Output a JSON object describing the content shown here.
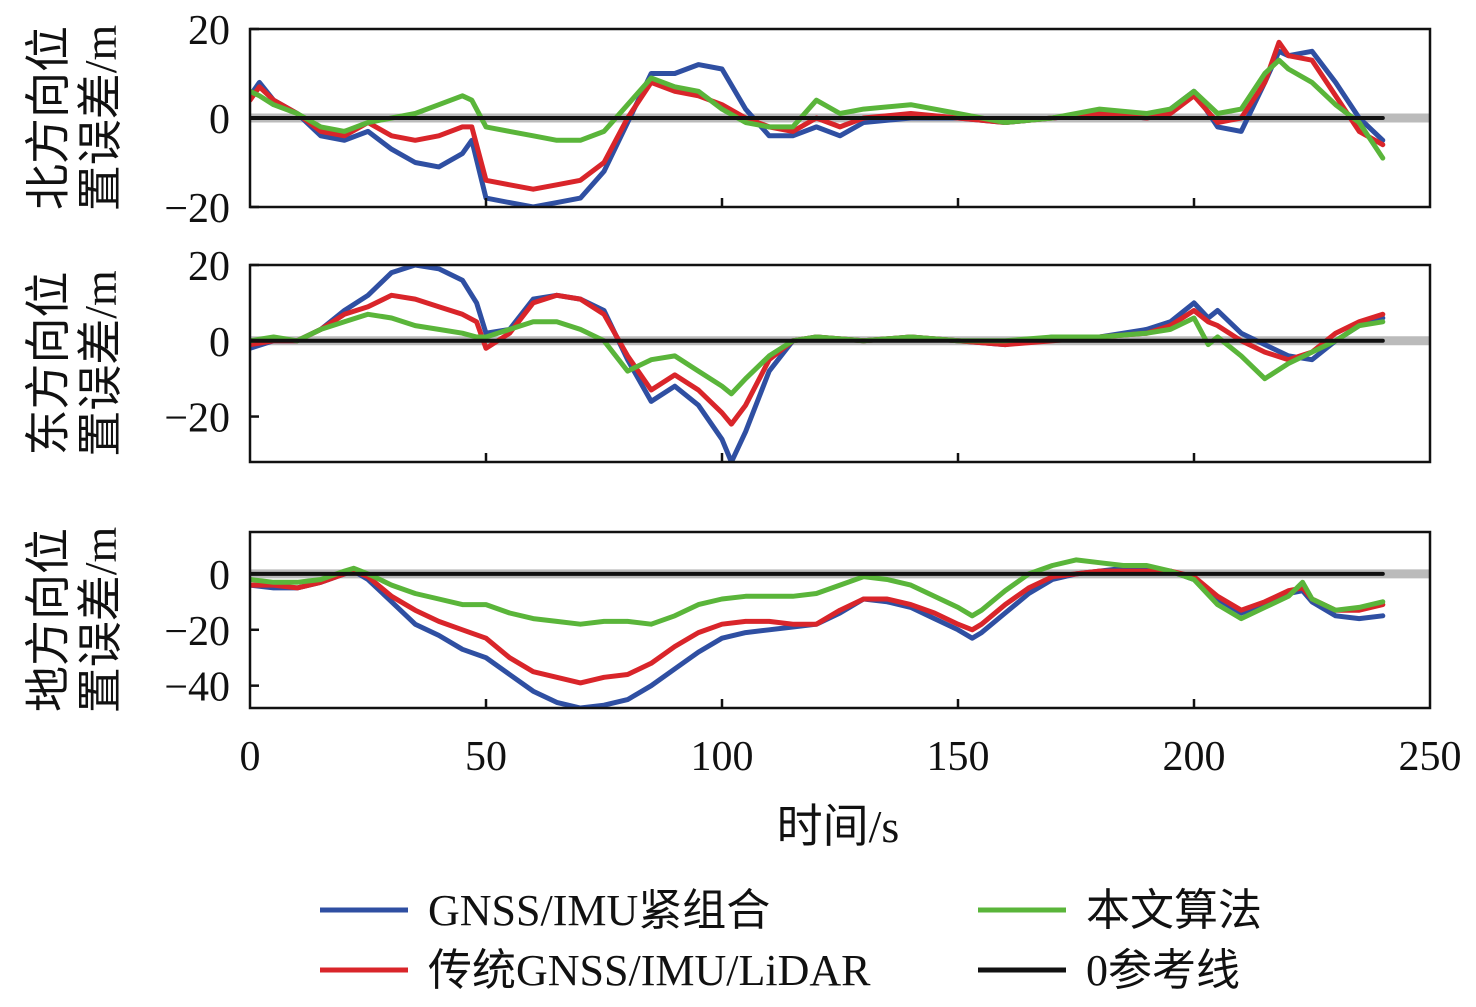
{
  "chart_data": [
    {
      "type": "line",
      "ylabel": [
        "北方向位",
        "置误差/m"
      ],
      "ylim": [
        -20,
        20
      ],
      "yticks": [
        20,
        0,
        -20
      ],
      "yticklabels": [
        "20",
        "0",
        "−20"
      ],
      "xlim": [
        0,
        250
      ],
      "grid": false,
      "series": [
        {
          "key": "blue",
          "x": [
            0,
            2,
            5,
            10,
            15,
            20,
            25,
            30,
            35,
            40,
            45,
            47,
            50,
            55,
            60,
            65,
            70,
            75,
            80,
            85,
            90,
            95,
            100,
            105,
            110,
            115,
            120,
            125,
            130,
            140,
            150,
            160,
            170,
            180,
            190,
            195,
            200,
            205,
            210,
            215,
            218,
            220,
            225,
            230,
            235,
            240
          ],
          "y": [
            5,
            8,
            4,
            1,
            -4,
            -5,
            -3,
            -7,
            -10,
            -11,
            -8,
            -5,
            -18,
            -19,
            -20,
            -19,
            -18,
            -12,
            -1,
            10,
            10,
            12,
            11,
            2,
            -4,
            -4,
            -2,
            -4,
            -1,
            0,
            0,
            -1,
            0,
            1,
            0,
            2,
            6,
            -2,
            -3,
            8,
            15,
            14,
            15,
            8,
            0,
            -5
          ]
        },
        {
          "key": "red",
          "x": [
            0,
            2,
            5,
            10,
            15,
            20,
            25,
            30,
            35,
            40,
            45,
            47,
            50,
            55,
            60,
            65,
            70,
            75,
            80,
            85,
            90,
            95,
            100,
            105,
            110,
            115,
            120,
            125,
            130,
            140,
            150,
            160,
            170,
            180,
            190,
            195,
            200,
            205,
            210,
            215,
            218,
            220,
            225,
            230,
            235,
            240
          ],
          "y": [
            4,
            7,
            4,
            1,
            -3,
            -4,
            -1,
            -4,
            -5,
            -4,
            -2,
            -2,
            -14,
            -15,
            -16,
            -15,
            -14,
            -10,
            0,
            8,
            6,
            5,
            3,
            0,
            -2,
            -3,
            0,
            -2,
            0,
            1,
            0,
            -1,
            0,
            1,
            0,
            1,
            5,
            -1,
            0,
            8,
            17,
            14,
            13,
            5,
            -3,
            -6
          ]
        },
        {
          "key": "green",
          "x": [
            0,
            2,
            5,
            10,
            15,
            20,
            25,
            30,
            35,
            40,
            45,
            47,
            50,
            55,
            60,
            65,
            70,
            75,
            80,
            85,
            90,
            95,
            100,
            105,
            110,
            115,
            120,
            125,
            130,
            140,
            150,
            160,
            170,
            180,
            190,
            195,
            200,
            205,
            210,
            215,
            218,
            220,
            225,
            230,
            235,
            240
          ],
          "y": [
            6,
            5,
            3,
            1,
            -2,
            -3,
            -1,
            0,
            1,
            3,
            5,
            4,
            -2,
            -3,
            -4,
            -5,
            -5,
            -3,
            3,
            9,
            7,
            6,
            2,
            -1,
            -2,
            -2,
            4,
            1,
            2,
            3,
            1,
            -1,
            0,
            2,
            1,
            2,
            6,
            1,
            2,
            10,
            13,
            11,
            8,
            3,
            -1,
            -9
          ]
        },
        {
          "key": "black",
          "x": [
            0,
            240
          ],
          "y": [
            0,
            0
          ]
        }
      ]
    },
    {
      "type": "line",
      "ylabel": [
        "东方向位",
        "置误差/m"
      ],
      "ylim": [
        -32,
        20
      ],
      "yticks": [
        20,
        0,
        -20
      ],
      "yticklabels": [
        "20",
        "0",
        "−20"
      ],
      "xlim": [
        0,
        250
      ],
      "grid": false,
      "series": [
        {
          "key": "blue",
          "x": [
            0,
            5,
            10,
            15,
            20,
            25,
            30,
            35,
            40,
            45,
            48,
            50,
            55,
            60,
            65,
            70,
            75,
            80,
            85,
            90,
            95,
            100,
            102,
            105,
            110,
            115,
            120,
            130,
            140,
            150,
            160,
            170,
            180,
            190,
            195,
            200,
            203,
            205,
            210,
            215,
            220,
            225,
            230,
            235,
            240
          ],
          "y": [
            -2,
            0,
            0,
            3,
            8,
            12,
            18,
            20,
            19,
            16,
            10,
            2,
            3,
            11,
            12,
            11,
            8,
            -5,
            -16,
            -12,
            -17,
            -26,
            -32,
            -24,
            -8,
            0,
            1,
            0,
            1,
            0,
            -1,
            1,
            1,
            3,
            5,
            10,
            6,
            8,
            2,
            -1,
            -4,
            -5,
            0,
            4,
            6
          ]
        },
        {
          "key": "red",
          "x": [
            0,
            5,
            10,
            15,
            20,
            25,
            30,
            35,
            40,
            45,
            48,
            50,
            55,
            60,
            65,
            70,
            75,
            80,
            85,
            90,
            95,
            100,
            102,
            105,
            110,
            115,
            120,
            130,
            140,
            150,
            160,
            170,
            180,
            190,
            195,
            200,
            203,
            205,
            210,
            215,
            220,
            225,
            230,
            235,
            240
          ],
          "y": [
            -1,
            0,
            0,
            3,
            7,
            9,
            12,
            11,
            9,
            7,
            5,
            -2,
            2,
            10,
            12,
            11,
            7,
            -4,
            -13,
            -9,
            -13,
            -19,
            -22,
            -17,
            -5,
            0,
            1,
            0,
            1,
            0,
            -1,
            0,
            1,
            2,
            4,
            8,
            5,
            4,
            0,
            -3,
            -5,
            -3,
            2,
            5,
            7
          ]
        },
        {
          "key": "green",
          "x": [
            0,
            5,
            10,
            15,
            20,
            25,
            30,
            35,
            40,
            45,
            48,
            50,
            55,
            60,
            65,
            70,
            75,
            80,
            85,
            90,
            95,
            100,
            102,
            105,
            110,
            115,
            120,
            130,
            140,
            150,
            160,
            170,
            180,
            190,
            195,
            200,
            203,
            205,
            210,
            215,
            220,
            225,
            230,
            235,
            240
          ],
          "y": [
            0,
            1,
            0,
            3,
            5,
            7,
            6,
            4,
            3,
            2,
            1,
            1,
            3,
            5,
            5,
            3,
            0,
            -8,
            -5,
            -4,
            -8,
            -12,
            -14,
            -10,
            -4,
            0,
            1,
            0,
            1,
            0,
            0,
            1,
            1,
            2,
            3,
            6,
            -1,
            1,
            -4,
            -10,
            -6,
            -3,
            0,
            4,
            5
          ]
        },
        {
          "key": "black",
          "x": [
            0,
            240
          ],
          "y": [
            0,
            0
          ]
        }
      ]
    },
    {
      "type": "line",
      "ylabel": [
        "地方向位",
        "置误差/m"
      ],
      "ylim": [
        -48,
        15
      ],
      "yticks": [
        0,
        -20,
        -40
      ],
      "yticklabels": [
        "0",
        "−20",
        "−40"
      ],
      "xlim": [
        0,
        250
      ],
      "xticks": [
        0,
        50,
        100,
        150,
        200,
        250
      ],
      "xticklabels": [
        "0",
        "50",
        "100",
        "150",
        "200",
        "250"
      ],
      "xlabel": "时间/s",
      "grid": false,
      "series": [
        {
          "key": "blue",
          "x": [
            0,
            5,
            10,
            15,
            20,
            22,
            25,
            30,
            35,
            40,
            45,
            50,
            55,
            60,
            65,
            70,
            75,
            80,
            85,
            90,
            95,
            100,
            105,
            110,
            115,
            120,
            125,
            130,
            135,
            140,
            145,
            150,
            153,
            155,
            160,
            165,
            170,
            175,
            180,
            185,
            190,
            195,
            200,
            205,
            210,
            215,
            220,
            223,
            225,
            230,
            235,
            240
          ],
          "y": [
            -4,
            -5,
            -5,
            -3,
            0,
            1,
            -2,
            -10,
            -18,
            -22,
            -27,
            -30,
            -36,
            -42,
            -46,
            -48,
            -47,
            -45,
            -40,
            -34,
            -28,
            -23,
            -21,
            -20,
            -19,
            -18,
            -14,
            -9,
            -10,
            -12,
            -16,
            -20,
            -23,
            -21,
            -14,
            -7,
            -2,
            0,
            1,
            2,
            2,
            1,
            -2,
            -9,
            -14,
            -11,
            -7,
            -6,
            -10,
            -15,
            -16,
            -15
          ]
        },
        {
          "key": "red",
          "x": [
            0,
            5,
            10,
            15,
            20,
            22,
            25,
            30,
            35,
            40,
            45,
            50,
            55,
            60,
            65,
            70,
            75,
            80,
            85,
            90,
            95,
            100,
            105,
            110,
            115,
            120,
            125,
            130,
            135,
            140,
            145,
            150,
            153,
            155,
            160,
            165,
            170,
            175,
            180,
            185,
            190,
            195,
            200,
            205,
            210,
            215,
            220,
            223,
            225,
            230,
            235,
            240
          ],
          "y": [
            -4,
            -4,
            -5,
            -3,
            0,
            1,
            -1,
            -8,
            -13,
            -17,
            -20,
            -23,
            -30,
            -35,
            -37,
            -39,
            -37,
            -36,
            -32,
            -26,
            -21,
            -18,
            -17,
            -17,
            -18,
            -18,
            -13,
            -9,
            -9,
            -11,
            -14,
            -18,
            -20,
            -18,
            -11,
            -5,
            -1,
            0,
            1,
            1,
            1,
            1,
            -1,
            -8,
            -13,
            -10,
            -6,
            -5,
            -9,
            -13,
            -13,
            -11
          ]
        },
        {
          "key": "green",
          "x": [
            0,
            5,
            10,
            15,
            20,
            22,
            25,
            30,
            35,
            40,
            45,
            50,
            55,
            60,
            65,
            70,
            75,
            80,
            85,
            90,
            95,
            100,
            105,
            110,
            115,
            120,
            125,
            130,
            135,
            140,
            145,
            150,
            153,
            155,
            160,
            165,
            170,
            175,
            180,
            185,
            190,
            195,
            200,
            205,
            210,
            215,
            220,
            223,
            225,
            230,
            235,
            240
          ],
          "y": [
            -2,
            -3,
            -3,
            -2,
            1,
            2,
            0,
            -4,
            -7,
            -9,
            -11,
            -11,
            -14,
            -16,
            -17,
            -18,
            -17,
            -17,
            -18,
            -15,
            -11,
            -9,
            -8,
            -8,
            -8,
            -7,
            -4,
            -1,
            -2,
            -4,
            -8,
            -12,
            -15,
            -13,
            -6,
            0,
            3,
            5,
            4,
            3,
            3,
            1,
            -2,
            -11,
            -16,
            -12,
            -8,
            -3,
            -9,
            -13,
            -12,
            -10
          ]
        },
        {
          "key": "black",
          "x": [
            0,
            240
          ],
          "y": [
            0,
            0
          ]
        }
      ]
    }
  ],
  "legend": {
    "placement": "bottom",
    "items": [
      {
        "key": "blue",
        "label": "GNSS/IMU紧组合",
        "color": "#2f4fa2"
      },
      {
        "key": "green",
        "label": "本文算法",
        "color": "#5ab53a"
      },
      {
        "key": "red",
        "label": "传统GNSS/IMU/LiDAR",
        "color": "#d9252a"
      },
      {
        "key": "black",
        "label": "0参考线",
        "color": "#111111"
      }
    ]
  },
  "colors": {
    "blue": "#2f4fa2",
    "red": "#d9252a",
    "green": "#5ab53a",
    "black": "#111111"
  }
}
